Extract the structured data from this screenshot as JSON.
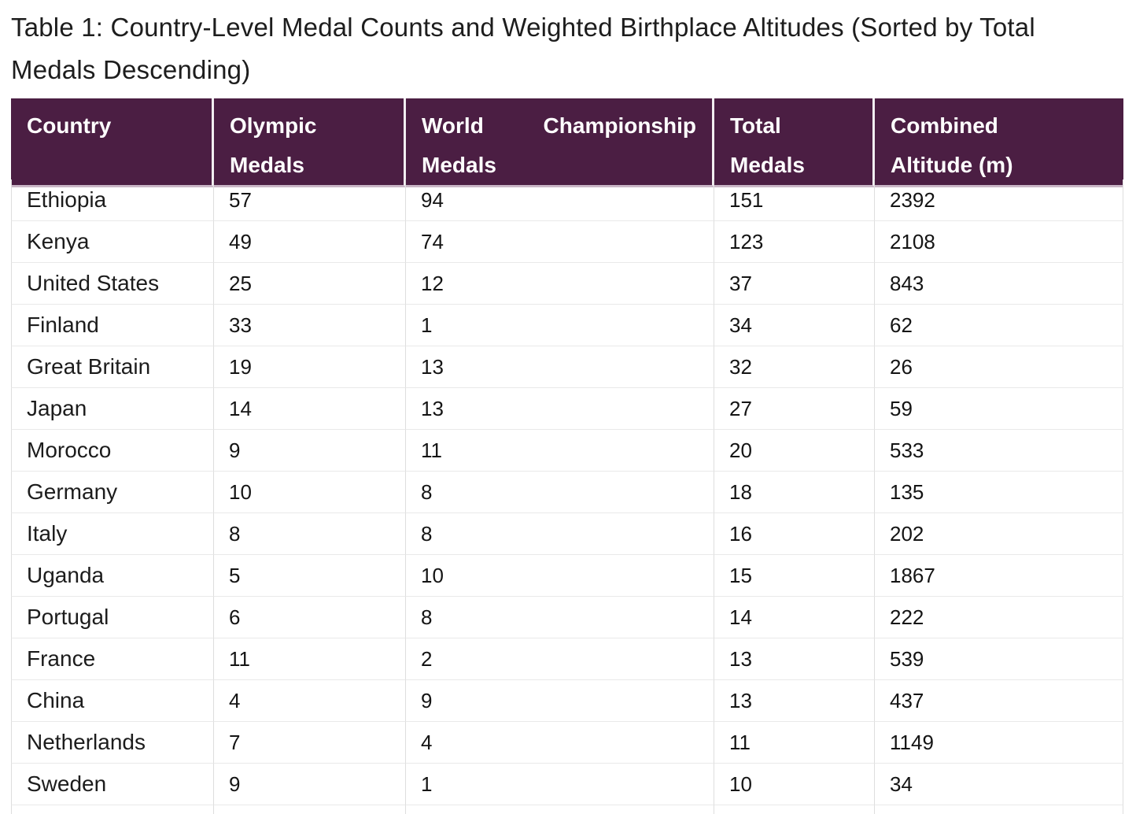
{
  "title_lines": [
    "Table 1: Country-Level Medal Counts and Weighted Birthplace Altitudes (Sorted by Total",
    "Medals Descending)"
  ],
  "colors": {
    "header_bg": "#4b1e43",
    "header_text": "#ffffff",
    "body_text": "#1c1c1c",
    "grid_line": "#dedede"
  },
  "table": {
    "columns": {
      "country": "Country",
      "olympic_line1": "Olympic",
      "olympic_line2": "Medals",
      "world_line1a": "World",
      "world_line1b": "Championship",
      "world_line2": "Medals",
      "total_line1": "Total",
      "total_line2": "Medals",
      "altitude_line1": "Combined",
      "altitude_line2": "Altitude (m)"
    },
    "rows": [
      {
        "country": "Ethiopia",
        "olympic": "57",
        "world": "94",
        "total": "151",
        "altitude": "2392"
      },
      {
        "country": "Kenya",
        "olympic": "49",
        "world": "74",
        "total": "123",
        "altitude": "2108"
      },
      {
        "country": "United States",
        "olympic": "25",
        "world": "12",
        "total": "37",
        "altitude": "843"
      },
      {
        "country": "Finland",
        "olympic": "33",
        "world": "1",
        "total": "34",
        "altitude": "62"
      },
      {
        "country": "Great Britain",
        "olympic": "19",
        "world": "13",
        "total": "32",
        "altitude": "26"
      },
      {
        "country": "Japan",
        "olympic": "14",
        "world": "13",
        "total": "27",
        "altitude": "59"
      },
      {
        "country": "Morocco",
        "olympic": "9",
        "world": "11",
        "total": "20",
        "altitude": "533"
      },
      {
        "country": "Germany",
        "olympic": "10",
        "world": "8",
        "total": "18",
        "altitude": "135"
      },
      {
        "country": "Italy",
        "olympic": "8",
        "world": "8",
        "total": "16",
        "altitude": "202"
      },
      {
        "country": "Uganda",
        "olympic": "5",
        "world": "10",
        "total": "15",
        "altitude": "1867"
      },
      {
        "country": "Portugal",
        "olympic": "6",
        "world": "8",
        "total": "14",
        "altitude": "222"
      },
      {
        "country": "France",
        "olympic": "11",
        "world": "2",
        "total": "13",
        "altitude": "539"
      },
      {
        "country": "China",
        "olympic": "4",
        "world": "9",
        "total": "13",
        "altitude": "437"
      },
      {
        "country": "Netherlands",
        "olympic": "7",
        "world": "4",
        "total": "11",
        "altitude": "1149"
      },
      {
        "country": "Sweden",
        "olympic": "9",
        "world": "1",
        "total": "10",
        "altitude": "34"
      }
    ]
  }
}
